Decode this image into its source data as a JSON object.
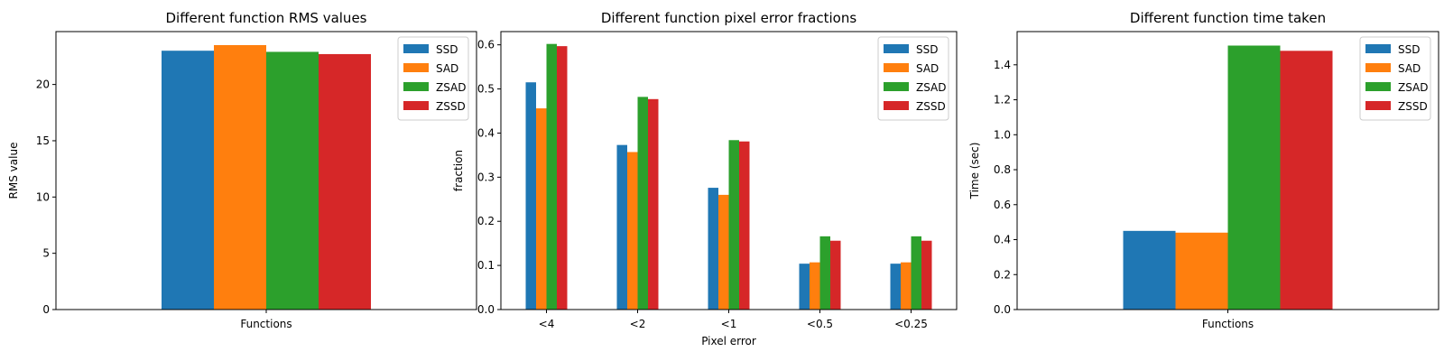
{
  "colors": {
    "SSD": "#1f77b4",
    "SAD": "#ff7f0e",
    "ZSAD": "#2ca02c",
    "ZSSD": "#d62728"
  },
  "chart_data": [
    {
      "type": "bar",
      "title": "Different function RMS values",
      "xlabel": "",
      "ylabel": "RMS value",
      "categories": [
        "Functions"
      ],
      "ylim": [
        0,
        24.7
      ],
      "yticks": [
        0,
        5,
        10,
        15,
        20
      ],
      "legend_position": "top-right",
      "grid": false,
      "series": [
        {
          "name": "SSD",
          "values": [
            23.0
          ]
        },
        {
          "name": "SAD",
          "values": [
            23.5
          ]
        },
        {
          "name": "ZSAD",
          "values": [
            22.9
          ]
        },
        {
          "name": "ZSSD",
          "values": [
            22.7
          ]
        }
      ]
    },
    {
      "type": "bar",
      "title": "Different function pixel error fractions",
      "xlabel": "Pixel error",
      "ylabel": "fraction",
      "categories": [
        "<4",
        "<2",
        "<1",
        "<0.5",
        "<0.25"
      ],
      "ylim": [
        0,
        0.63
      ],
      "yticks": [
        0.0,
        0.1,
        0.2,
        0.3,
        0.4,
        0.5,
        0.6
      ],
      "legend_position": "top-right",
      "grid": false,
      "series": [
        {
          "name": "SSD",
          "values": [
            0.515,
            0.373,
            0.276,
            0.104,
            0.104
          ]
        },
        {
          "name": "SAD",
          "values": [
            0.456,
            0.357,
            0.26,
            0.107,
            0.107
          ]
        },
        {
          "name": "ZSAD",
          "values": [
            0.602,
            0.482,
            0.384,
            0.166,
            0.166
          ]
        },
        {
          "name": "ZSSD",
          "values": [
            0.597,
            0.477,
            0.381,
            0.156,
            0.156
          ]
        }
      ]
    },
    {
      "type": "bar",
      "title": "Different function time taken",
      "xlabel": "",
      "ylabel": "Time (sec)",
      "categories": [
        "Functions"
      ],
      "ylim": [
        0,
        1.59
      ],
      "yticks": [
        0.0,
        0.2,
        0.4,
        0.6,
        0.8,
        1.0,
        1.2,
        1.4
      ],
      "legend_position": "top-right",
      "grid": false,
      "series": [
        {
          "name": "SSD",
          "values": [
            0.45
          ]
        },
        {
          "name": "SAD",
          "values": [
            0.44
          ]
        },
        {
          "name": "ZSAD",
          "values": [
            1.51
          ]
        },
        {
          "name": "ZSSD",
          "values": [
            1.48
          ]
        }
      ]
    }
  ]
}
